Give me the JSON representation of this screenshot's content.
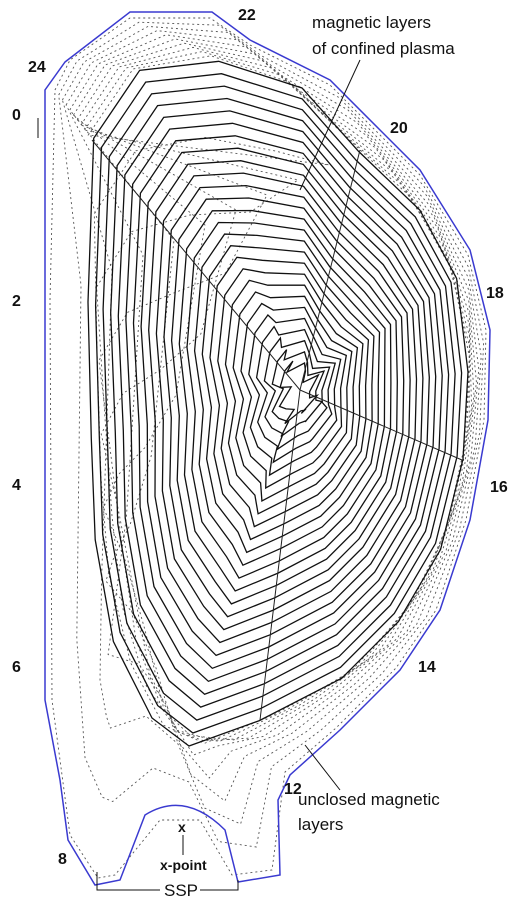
{
  "diagram": {
    "region_labels": [
      "22",
      "24",
      "20",
      "18",
      "16",
      "14",
      "12",
      "8"
    ],
    "axis_labels": [
      "0",
      "2",
      "4",
      "6"
    ],
    "annotations": {
      "confined": [
        "magnetic layers",
        "of confined plasma"
      ],
      "unclosed": [
        "unclosed magnetic",
        "layers"
      ],
      "x_point": "x-point",
      "x_mark": "x",
      "ssp": "SSP"
    }
  }
}
